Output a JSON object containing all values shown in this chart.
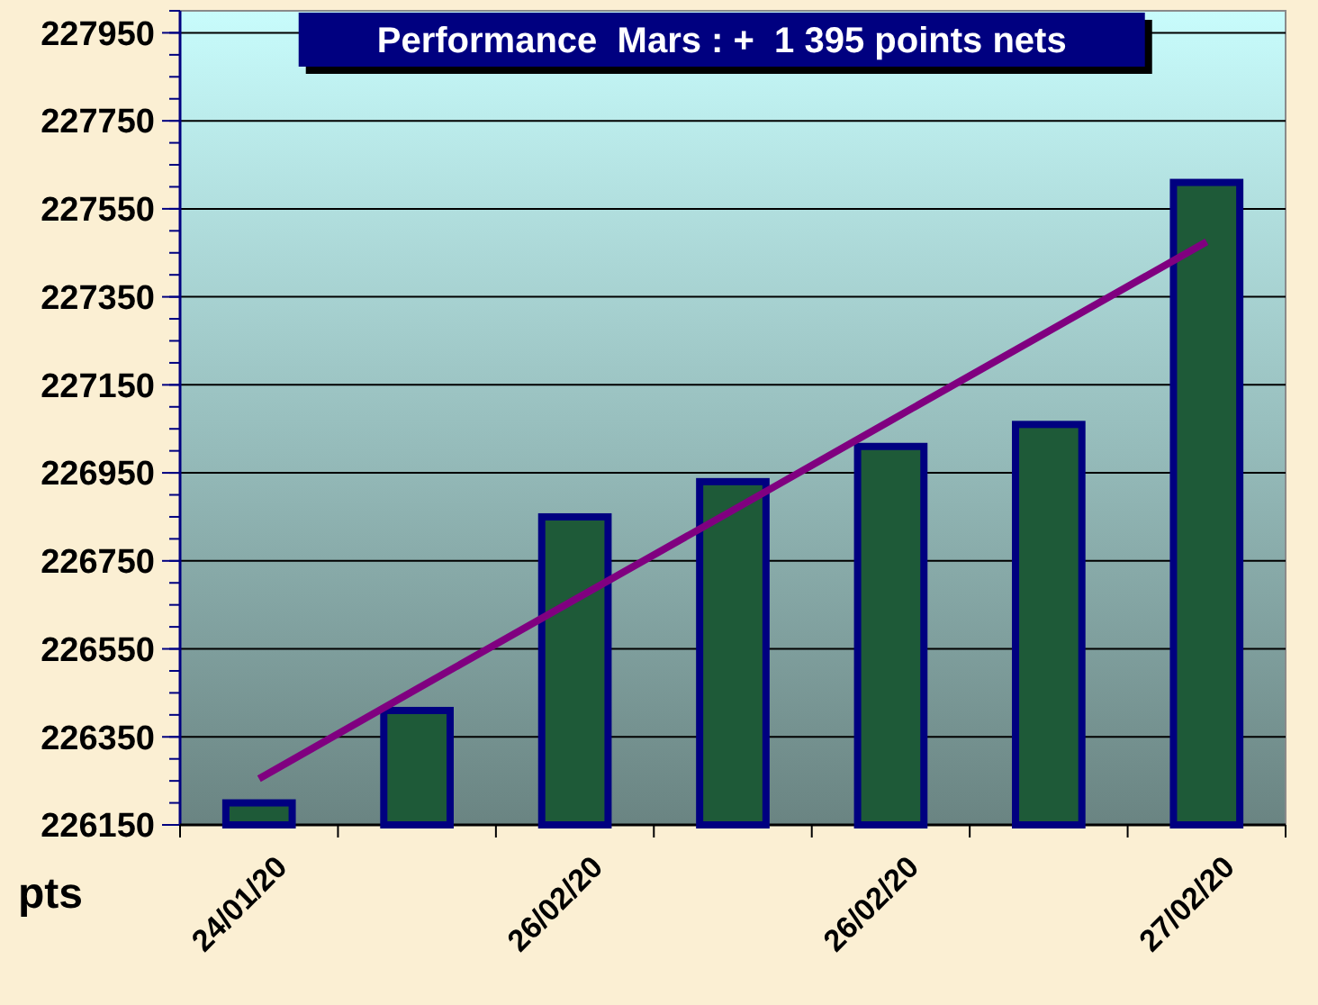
{
  "chart_data": {
    "type": "bar",
    "title": "Performance  Mars : +  1 395 points nets",
    "ylabel": "pts",
    "categories": [
      "24/01/20",
      null,
      "26/02/20",
      null,
      "26/02/20",
      null,
      "27/02/20"
    ],
    "series": [
      {
        "color": "#1e5a38",
        "values": [
          226200,
          226410,
          226850,
          226930,
          227010,
          227060,
          227610
        ]
      },
      {
        "type": "line",
        "color": "#800080",
        "values": [
          226255,
          226459,
          226662,
          226865,
          227069,
          227272,
          227475
        ]
      }
    ],
    "ylim": [
      226150,
      228000
    ],
    "yticks": [
      226150,
      226350,
      226550,
      226750,
      226950,
      227150,
      227350,
      227550,
      227750,
      227950
    ],
    "grid": "y"
  }
}
